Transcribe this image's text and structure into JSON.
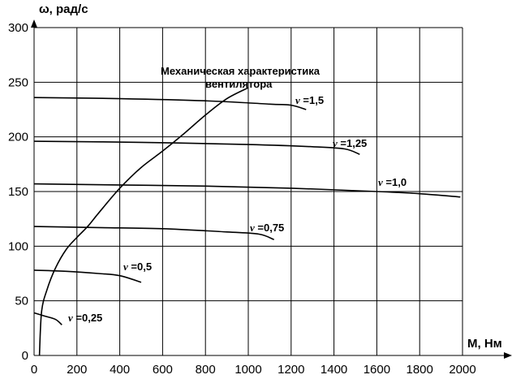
{
  "chart_data": {
    "type": "line",
    "ylabel": "ω, рад/с",
    "xlabel": "М, Нм",
    "xlim": [
      0,
      2000
    ],
    "ylim": [
      0,
      300
    ],
    "xticks": [
      0,
      200,
      400,
      600,
      800,
      1000,
      1200,
      1400,
      1600,
      1800,
      2000
    ],
    "yticks": [
      0,
      50,
      100,
      150,
      200,
      250,
      300
    ],
    "grid": true,
    "annotation": [
      "Механическая характеристика",
      "вентилятора"
    ],
    "series": [
      {
        "name": "ν =0,25",
        "points": [
          [
            0,
            39
          ],
          [
            50,
            36
          ],
          [
            100,
            33
          ],
          [
            130,
            28
          ]
        ]
      },
      {
        "name": "ν =0,5",
        "points": [
          [
            0,
            78
          ],
          [
            150,
            77
          ],
          [
            300,
            75
          ],
          [
            400,
            73
          ],
          [
            500,
            67
          ]
        ]
      },
      {
        "name": "ν =0,75",
        "points": [
          [
            0,
            118
          ],
          [
            300,
            117
          ],
          [
            600,
            116
          ],
          [
            900,
            113
          ],
          [
            1050,
            111
          ],
          [
            1120,
            106
          ]
        ]
      },
      {
        "name": "ν =1,0",
        "points": [
          [
            0,
            157
          ],
          [
            400,
            156
          ],
          [
            800,
            155
          ],
          [
            1200,
            153
          ],
          [
            1600,
            150
          ],
          [
            1800,
            148
          ],
          [
            1990,
            145
          ]
        ]
      },
      {
        "name": "ν =1,25",
        "points": [
          [
            0,
            196
          ],
          [
            500,
            195
          ],
          [
            1000,
            193
          ],
          [
            1300,
            191
          ],
          [
            1450,
            189
          ],
          [
            1520,
            184
          ]
        ]
      },
      {
        "name": "ν =1,5",
        "points": [
          [
            0,
            236
          ],
          [
            400,
            235
          ],
          [
            800,
            233
          ],
          [
            1100,
            230
          ],
          [
            1200,
            229
          ],
          [
            1270,
            225
          ]
        ]
      },
      {
        "name": "Механическая характеристика вентилятора",
        "points": [
          [
            25,
            0
          ],
          [
            35,
            40
          ],
          [
            60,
            60
          ],
          [
            100,
            80
          ],
          [
            150,
            97
          ],
          [
            200,
            108
          ],
          [
            250,
            118
          ],
          [
            300,
            130
          ],
          [
            400,
            153
          ],
          [
            500,
            172
          ],
          [
            600,
            187
          ],
          [
            700,
            203
          ],
          [
            800,
            220
          ],
          [
            900,
            235
          ],
          [
            1000,
            245
          ]
        ]
      }
    ],
    "series_labels": [
      "ν =0,25",
      "ν =0,5",
      "ν =0,75",
      "ν =1,0",
      "ν =1,25",
      "ν =1,5"
    ]
  }
}
